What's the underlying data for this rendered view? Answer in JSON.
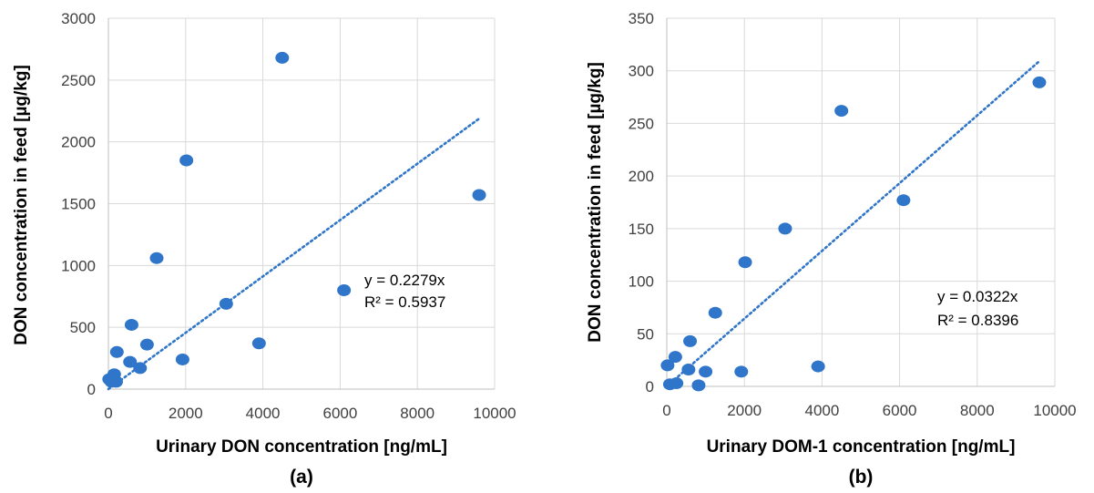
{
  "chart_data": [
    {
      "type": "scatter",
      "panel_label": "(a)",
      "xlabel": "Urinary DON concentration [ng/mL]",
      "ylabel": "DON concentration in feed [µg/kg]",
      "xlim": [
        0,
        10000
      ],
      "ylim": [
        0,
        3000
      ],
      "x_ticks": [
        0,
        2000,
        4000,
        6000,
        8000,
        10000
      ],
      "x_tick_labels": [
        "0",
        "2000",
        "4000",
        "6000",
        "8000",
        "10000"
      ],
      "y_ticks": [
        0,
        500,
        1000,
        1500,
        2000,
        2500,
        3000
      ],
      "y_tick_labels": [
        "0",
        "500",
        "1000",
        "1500",
        "2000",
        "2500",
        "3000"
      ],
      "grid": true,
      "marker_color": "#2F75C9",
      "trendline": {
        "slope": 0.2279,
        "style": "dotted",
        "x_range": [
          0,
          9600
        ]
      },
      "equation": "y = 0.2279x",
      "r_squared": "R² = 0.5937",
      "points": [
        {
          "x": 20,
          "y": 80
        },
        {
          "x": 80,
          "y": 60
        },
        {
          "x": 150,
          "y": 120
        },
        {
          "x": 200,
          "y": 60
        },
        {
          "x": 220,
          "y": 300
        },
        {
          "x": 560,
          "y": 220
        },
        {
          "x": 600,
          "y": 520
        },
        {
          "x": 820,
          "y": 170
        },
        {
          "x": 1000,
          "y": 360
        },
        {
          "x": 1250,
          "y": 1060
        },
        {
          "x": 1920,
          "y": 240
        },
        {
          "x": 2020,
          "y": 1850
        },
        {
          "x": 3050,
          "y": 690
        },
        {
          "x": 3900,
          "y": 370
        },
        {
          "x": 4500,
          "y": 2680
        },
        {
          "x": 6100,
          "y": 800
        },
        {
          "x": 9600,
          "y": 1570
        }
      ]
    },
    {
      "type": "scatter",
      "panel_label": "(b)",
      "xlabel": "Urinary DOM-1 concentration [ng/mL]",
      "ylabel": "DON concentration in feed [µg/kg]",
      "xlim": [
        0,
        10000
      ],
      "ylim": [
        0,
        350
      ],
      "x_ticks": [
        0,
        2000,
        4000,
        6000,
        8000,
        10000
      ],
      "x_tick_labels": [
        "0",
        "2000",
        "4000",
        "6000",
        "8000",
        "10000"
      ],
      "y_ticks": [
        0,
        50,
        100,
        150,
        200,
        250,
        300,
        350
      ],
      "y_tick_labels": [
        "0",
        "50",
        "100",
        "150",
        "200",
        "250",
        "300",
        "350"
      ],
      "grid": true,
      "marker_color": "#2F75C9",
      "trendline": {
        "slope": 0.0322,
        "style": "dotted",
        "x_range": [
          0,
          9600
        ]
      },
      "equation": "y = 0.0322x",
      "r_squared": "R² = 0.8396",
      "points": [
        {
          "x": 20,
          "y": 20
        },
        {
          "x": 80,
          "y": 2
        },
        {
          "x": 220,
          "y": 28
        },
        {
          "x": 250,
          "y": 3
        },
        {
          "x": 560,
          "y": 16
        },
        {
          "x": 600,
          "y": 43
        },
        {
          "x": 820,
          "y": 1
        },
        {
          "x": 1000,
          "y": 14
        },
        {
          "x": 1250,
          "y": 70
        },
        {
          "x": 1920,
          "y": 14
        },
        {
          "x": 2020,
          "y": 118
        },
        {
          "x": 3050,
          "y": 150
        },
        {
          "x": 3900,
          "y": 19
        },
        {
          "x": 4500,
          "y": 262
        },
        {
          "x": 6100,
          "y": 177
        },
        {
          "x": 9600,
          "y": 289
        }
      ]
    }
  ]
}
